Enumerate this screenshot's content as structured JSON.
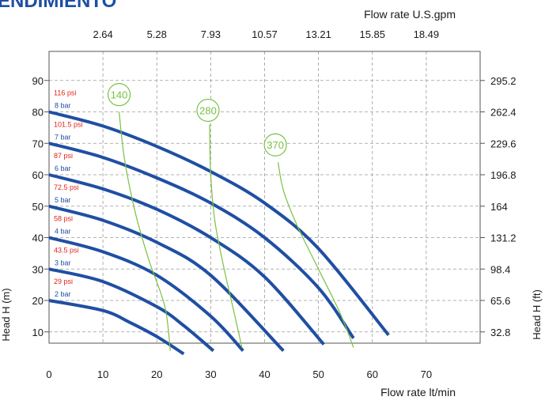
{
  "chart_data": {
    "type": "line",
    "title": "ENDIMIENTO",
    "x_top_title": "Flow rate U.S.gpm",
    "x_top_ticks": [
      "2.64",
      "5.28",
      "7.93",
      "10.57",
      "13.21",
      "15.85",
      "18.49"
    ],
    "x_top_values": [
      10,
      20,
      30,
      40,
      50,
      60,
      70
    ],
    "xlabel": "Flow rate  lt/min",
    "x_ticks": [
      0,
      10,
      20,
      30,
      40,
      50,
      60,
      70
    ],
    "xlim": [
      0,
      80
    ],
    "ylabel": "Head H (m)",
    "y_ticks": [
      10,
      20,
      30,
      40,
      50,
      60,
      70,
      80,
      90
    ],
    "ylim": [
      0,
      95
    ],
    "y2label": "Head H (ft)",
    "y2_ticks": [
      "32.8",
      "65.6",
      "98.4",
      "131.2",
      "164",
      "196.8",
      "229.6",
      "262.4",
      "295.2"
    ],
    "grid": true,
    "pressure_curves": [
      {
        "bar": "2 bar",
        "psi": "29 psi",
        "x": [
          0,
          10,
          15,
          20,
          25
        ],
        "y": [
          20,
          16.8,
          13,
          8.5,
          3
        ]
      },
      {
        "bar": "3 bar",
        "psi": "43.5 psi",
        "x": [
          0,
          10,
          20,
          25,
          30.5
        ],
        "y": [
          30,
          26,
          18,
          12,
          4
        ]
      },
      {
        "bar": "4 bar",
        "psi": "58 psi",
        "x": [
          0,
          10,
          20,
          30,
          36
        ],
        "y": [
          40,
          35.5,
          28,
          15,
          4
        ]
      },
      {
        "bar": "5 bar",
        "psi": "72.5 psi",
        "x": [
          0,
          10,
          20,
          30,
          43.5
        ],
        "y": [
          50,
          45.5,
          38.5,
          28,
          4
        ]
      },
      {
        "bar": "6 bar",
        "psi": "87 psi",
        "x": [
          0,
          10,
          20,
          30,
          40,
          51
        ],
        "y": [
          60,
          55.5,
          49,
          40,
          27.5,
          6
        ]
      },
      {
        "bar": "7 bar",
        "psi": "101.5 psi",
        "x": [
          0,
          10,
          20,
          30,
          40,
          50,
          56.5
        ],
        "y": [
          70,
          65.5,
          59,
          51,
          40,
          24,
          8
        ]
      },
      {
        "bar": "8 bar",
        "psi": "116 psi",
        "x": [
          0,
          10,
          20,
          30,
          40,
          50,
          63
        ],
        "y": [
          80,
          75.5,
          69,
          61,
          51,
          36.5,
          9
        ]
      }
    ],
    "air_curves": [
      {
        "name": "140",
        "label_x": 13,
        "label_y": 85.5,
        "x": [
          13,
          14,
          16,
          18.5,
          21.5,
          22.5
        ],
        "y": [
          80,
          65,
          48,
          33,
          18,
          4
        ]
      },
      {
        "name": "280",
        "label_x": 29.5,
        "label_y": 80.5,
        "x": [
          29.8,
          30,
          30.8,
          32.5,
          34.5,
          35.8
        ],
        "y": [
          76,
          60,
          45,
          30,
          15,
          5
        ]
      },
      {
        "name": "370",
        "label_x": 42,
        "label_y": 69.5,
        "x": [
          42.5,
          43.5,
          46,
          50,
          54,
          56.5
        ],
        "y": [
          64,
          55,
          44,
          30,
          16,
          5
        ]
      }
    ],
    "colors": {
      "pressure_curve": "#1f4fa3",
      "air_curve": "#7ac143",
      "bar_label": "#1f4fa3",
      "psi_label": "#e2231a",
      "grid": "#9a9a9a",
      "text": "#1a1a1a",
      "title": "#1f4fa3"
    }
  }
}
